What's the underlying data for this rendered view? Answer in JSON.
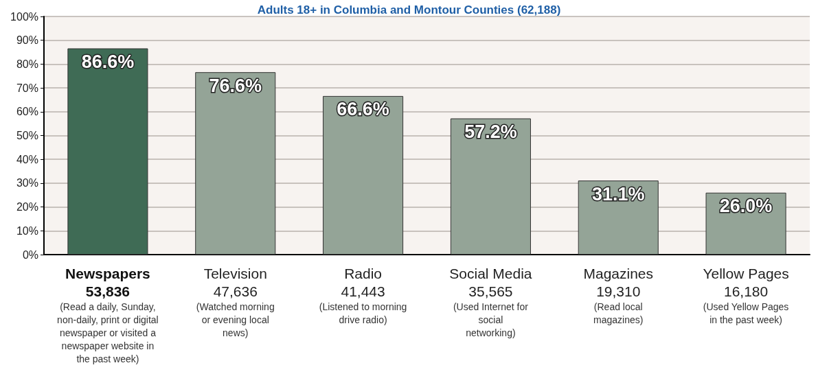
{
  "chart_data": {
    "type": "bar",
    "title": "Adults 18+ in Columbia and Montour Counties (62,188)",
    "categories": [
      "Newspapers\n53,836\n(Read a daily, Sunday,\nnon-daily, print or digital\nnewspaper or visited a\nnewspaper website in\nthe past week)",
      "Television\n47,636\n(Watched morning\nor evening local\nnews)",
      "Radio\n41,443\n(Listened to morning\ndrive radio)",
      "Social Media\n35,565\n(Used Internet for\nsocial\nnetworking)",
      "Magazines\n19,310\n(Read local\nmagazines)",
      "Yellow Pages\n16,180\n(Used Yellow Pages\nin the past week)"
    ],
    "values": [
      86.6,
      76.6,
      66.6,
      57.2,
      31.1,
      26.0
    ],
    "value_labels": [
      "86.6%",
      "76.6%",
      "66.6%",
      "57.2%",
      "31.1%",
      "26.0%"
    ],
    "colors": [
      "#3f6b55",
      "#94a497",
      "#94a497",
      "#94a497",
      "#94a497",
      "#94a497"
    ],
    "ylim": [
      0,
      100
    ],
    "yticks": [
      {
        "value": 0,
        "label": "0%"
      },
      {
        "value": 10,
        "label": "10%"
      },
      {
        "value": 20,
        "label": "20%"
      },
      {
        "value": 30,
        "label": "30%"
      },
      {
        "value": 40,
        "label": "40%"
      },
      {
        "value": 50,
        "label": "50%"
      },
      {
        "value": 60,
        "label": "60%"
      },
      {
        "value": 70,
        "label": "70%"
      },
      {
        "value": 80,
        "label": "80%"
      },
      {
        "value": 90,
        "label": "90%"
      },
      {
        "value": 100,
        "label": "100%"
      }
    ],
    "grid": "y"
  }
}
